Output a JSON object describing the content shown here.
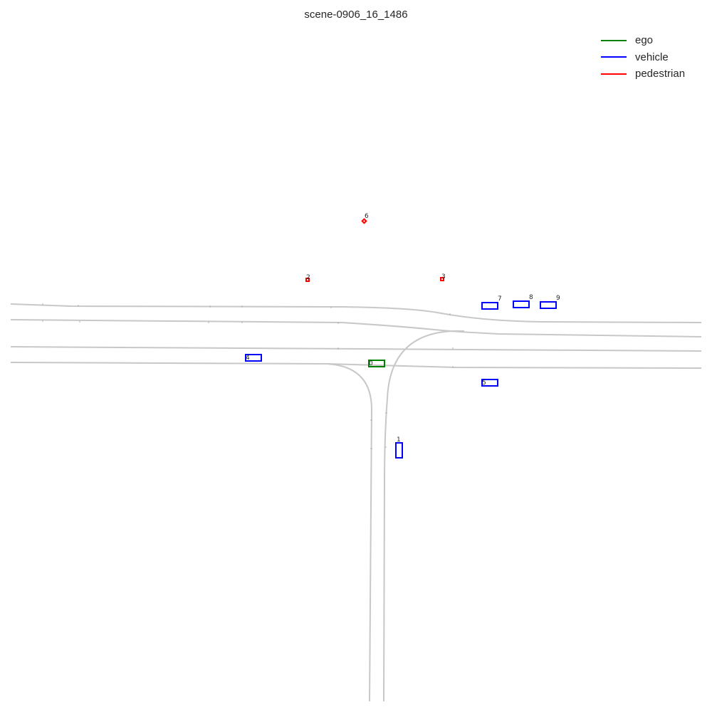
{
  "title": "scene-0906_16_1486",
  "colors": {
    "ego": "#008000",
    "vehicle": "#0000ff",
    "pedestrian": "#ff0000",
    "lane": "#c8c8c8"
  },
  "legend": [
    {
      "label": "ego",
      "color": "#008000"
    },
    {
      "label": "vehicle",
      "color": "#0000ff"
    },
    {
      "label": "pedestrian",
      "color": "#ff0000"
    }
  ],
  "agents": [
    {
      "id": "0",
      "type": "ego"
    },
    {
      "id": "1",
      "type": "vehicle"
    },
    {
      "id": "2",
      "type": "pedestrian"
    },
    {
      "id": "3",
      "type": "pedestrian"
    },
    {
      "id": "4",
      "type": "vehicle"
    },
    {
      "id": "5",
      "type": "vehicle"
    },
    {
      "id": "6",
      "type": "pedestrian"
    },
    {
      "id": "7",
      "type": "vehicle"
    },
    {
      "id": "8",
      "type": "vehicle"
    },
    {
      "id": "9",
      "type": "vehicle"
    }
  ]
}
